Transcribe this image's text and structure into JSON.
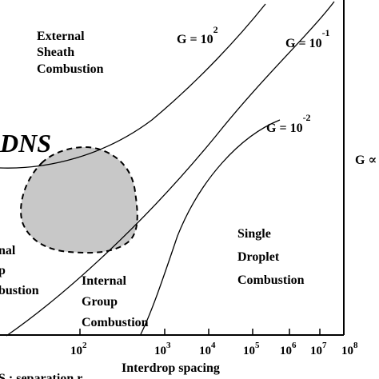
{
  "regions": {
    "external_sheath": [
      "External",
      "Sheath",
      "Combustion"
    ],
    "single_droplet": [
      "Single",
      "Droplet",
      "Combustion"
    ],
    "internal_group": [
      "Internal",
      "Group",
      "Combustion"
    ],
    "left_cut": [
      "nal",
      "p",
      "bustion"
    ]
  },
  "dns_label": "DNS",
  "curves": [
    {
      "base": "G = 10",
      "exp": "2"
    },
    {
      "base": "G = 10",
      "exp": "-1"
    },
    {
      "base": "G = 10",
      "exp": "-2"
    }
  ],
  "x_axis": {
    "ticks": [
      {
        "base": "10",
        "exp": "2"
      },
      {
        "base": "10",
        "exp": "3"
      },
      {
        "base": "10",
        "exp": "4"
      },
      {
        "base": "10",
        "exp": "5"
      },
      {
        "base": "10",
        "exp": "6"
      },
      {
        "base": "10",
        "exp": "7"
      },
      {
        "base": "10",
        "exp": "8"
      }
    ],
    "label": "Interdrop spacing",
    "cut_label": "S : separation r"
  },
  "right_label": "G ∝"
}
